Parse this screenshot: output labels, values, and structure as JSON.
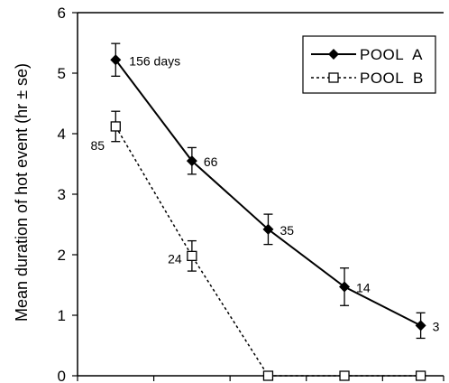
{
  "chart_data": {
    "type": "line",
    "title": "",
    "xlabel": "",
    "ylabel": "Mean duration of hot event (hr ± se)",
    "ylim": [
      0,
      6
    ],
    "yticks": [
      "0",
      "1",
      "2",
      "3",
      "4",
      "5",
      "6"
    ],
    "x": [
      1,
      2,
      3,
      4,
      5
    ],
    "xlim": [
      0.5,
      5.3
    ],
    "legend_position": "top-right",
    "grid": false,
    "series": [
      {
        "name": "POOL  A",
        "line_style": "solid",
        "marker": "filled-diamond",
        "color": "#000000",
        "values": [
          5.22,
          3.55,
          2.42,
          1.47,
          0.83
        ],
        "errors": [
          0.27,
          0.22,
          0.25,
          0.31,
          0.21
        ],
        "labels": [
          "156 days",
          "66",
          "35",
          "14",
          "3"
        ]
      },
      {
        "name": "POOL  B",
        "line_style": "dashed",
        "marker": "open-square",
        "color": "#000000",
        "values": [
          4.12,
          1.98,
          0.0,
          0.0,
          0.0
        ],
        "errors": [
          0.25,
          0.25,
          0.0,
          0.0,
          0.0
        ],
        "labels": [
          "85",
          "24",
          "",
          "",
          ""
        ]
      }
    ]
  }
}
